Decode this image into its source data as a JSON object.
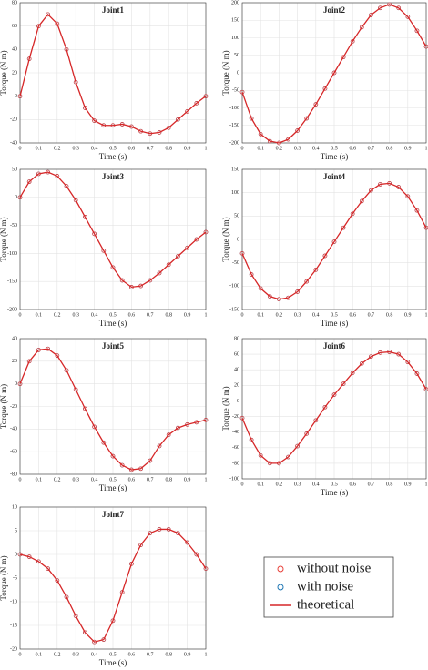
{
  "chart_data": [
    {
      "type": "line",
      "title": "Joint1",
      "xlabel": "Time (s)",
      "ylabel": "Torque (N m)",
      "grid": true,
      "x": [
        0,
        0.05,
        0.1,
        0.15,
        0.2,
        0.25,
        0.3,
        0.35,
        0.4,
        0.45,
        0.5,
        0.55,
        0.6,
        0.65,
        0.7,
        0.75,
        0.8,
        0.85,
        0.9,
        0.95,
        1
      ],
      "xlim": [
        0,
        1
      ],
      "xticks": [
        0,
        0.1,
        0.2,
        0.3,
        0.4,
        0.5,
        0.6,
        0.7,
        0.8,
        0.9,
        1
      ],
      "ylim": [
        -40,
        80
      ],
      "yticks": [
        -40,
        -20,
        0,
        20,
        40,
        60,
        80
      ],
      "series": [
        {
          "name": "with noise",
          "color": "#1f77b4",
          "mode": "markers",
          "values": [
            0,
            32,
            60,
            70,
            62,
            40,
            12,
            -10,
            -21,
            -25,
            -25,
            -24,
            -26,
            -30,
            -32,
            -31,
            -27,
            -20,
            -13,
            -6,
            0
          ]
        },
        {
          "name": "without noise",
          "color": "#e8413a",
          "mode": "markers",
          "values": [
            0,
            32,
            60,
            70,
            62,
            40,
            12,
            -10,
            -21,
            -25,
            -25,
            -24,
            -26,
            -30,
            -32,
            -31,
            -27,
            -20,
            -13,
            -6,
            0
          ]
        },
        {
          "name": "theoretical",
          "color": "#d62728",
          "mode": "line",
          "values": [
            0,
            32,
            60,
            70,
            62,
            40,
            12,
            -10,
            -21,
            -25,
            -25,
            -24,
            -26,
            -30,
            -32,
            -31,
            -27,
            -20,
            -13,
            -6,
            0
          ]
        }
      ]
    },
    {
      "type": "line",
      "title": "Joint2",
      "xlabel": "Time (s)",
      "ylabel": "Torque (N m)",
      "grid": true,
      "x": [
        0,
        0.05,
        0.1,
        0.15,
        0.2,
        0.25,
        0.3,
        0.35,
        0.4,
        0.45,
        0.5,
        0.55,
        0.6,
        0.65,
        0.7,
        0.75,
        0.8,
        0.85,
        0.9,
        0.95,
        1
      ],
      "xlim": [
        0,
        1
      ],
      "xticks": [
        0,
        0.1,
        0.2,
        0.3,
        0.4,
        0.5,
        0.6,
        0.7,
        0.8,
        0.9,
        1
      ],
      "ylim": [
        -200,
        200
      ],
      "yticks": [
        -200,
        -150,
        -100,
        -50,
        0,
        50,
        100,
        150,
        200
      ],
      "series": [
        {
          "name": "with noise",
          "color": "#1f77b4",
          "mode": "markers",
          "values": [
            -55,
            -130,
            -175,
            -195,
            -200,
            -190,
            -165,
            -130,
            -90,
            -45,
            0,
            45,
            90,
            130,
            165,
            185,
            195,
            185,
            160,
            120,
            75
          ]
        },
        {
          "name": "without noise",
          "color": "#e8413a",
          "mode": "markers",
          "values": [
            -55,
            -130,
            -175,
            -195,
            -200,
            -190,
            -165,
            -130,
            -90,
            -45,
            0,
            45,
            90,
            130,
            165,
            185,
            195,
            185,
            160,
            120,
            75
          ]
        },
        {
          "name": "theoretical",
          "color": "#d62728",
          "mode": "line",
          "values": [
            -55,
            -130,
            -175,
            -195,
            -200,
            -190,
            -165,
            -130,
            -90,
            -45,
            0,
            45,
            90,
            130,
            165,
            185,
            195,
            185,
            160,
            120,
            75
          ]
        }
      ]
    },
    {
      "type": "line",
      "title": "Joint3",
      "xlabel": "Time (s)",
      "ylabel": "Torque (N m)",
      "grid": true,
      "x": [
        0,
        0.05,
        0.1,
        0.15,
        0.2,
        0.25,
        0.3,
        0.35,
        0.4,
        0.45,
        0.5,
        0.55,
        0.6,
        0.65,
        0.7,
        0.75,
        0.8,
        0.85,
        0.9,
        0.95,
        1
      ],
      "xlim": [
        0,
        1
      ],
      "xticks": [
        0,
        0.1,
        0.2,
        0.3,
        0.4,
        0.5,
        0.6,
        0.7,
        0.8,
        0.9,
        1
      ],
      "ylim": [
        -200,
        50
      ],
      "yticks": [
        -200,
        -150,
        -100,
        -50,
        0,
        50
      ],
      "series": [
        {
          "name": "with noise",
          "color": "#1f77b4",
          "mode": "markers",
          "values": [
            0,
            28,
            42,
            45,
            38,
            20,
            -5,
            -35,
            -65,
            -95,
            -125,
            -148,
            -160,
            -158,
            -148,
            -135,
            -120,
            -105,
            -90,
            -75,
            -62
          ]
        },
        {
          "name": "without noise",
          "color": "#e8413a",
          "mode": "markers",
          "values": [
            0,
            28,
            42,
            45,
            38,
            20,
            -5,
            -35,
            -65,
            -95,
            -125,
            -148,
            -160,
            -158,
            -148,
            -135,
            -120,
            -105,
            -90,
            -75,
            -62
          ]
        },
        {
          "name": "theoretical",
          "color": "#d62728",
          "mode": "line",
          "values": [
            0,
            28,
            42,
            45,
            38,
            20,
            -5,
            -35,
            -65,
            -95,
            -125,
            -148,
            -160,
            -158,
            -148,
            -135,
            -120,
            -105,
            -90,
            -75,
            -62
          ]
        }
      ]
    },
    {
      "type": "line",
      "title": "Joint4",
      "xlabel": "Time (s)",
      "ylabel": "Torque (N m)",
      "grid": true,
      "x": [
        0,
        0.05,
        0.1,
        0.15,
        0.2,
        0.25,
        0.3,
        0.35,
        0.4,
        0.45,
        0.5,
        0.55,
        0.6,
        0.65,
        0.7,
        0.75,
        0.8,
        0.85,
        0.9,
        0.95,
        1
      ],
      "xlim": [
        0,
        1
      ],
      "xticks": [
        0,
        0.1,
        0.2,
        0.3,
        0.4,
        0.5,
        0.6,
        0.7,
        0.8,
        0.9,
        1
      ],
      "ylim": [
        -150,
        150
      ],
      "yticks": [
        -150,
        -100,
        -50,
        0,
        50,
        100,
        150
      ],
      "series": [
        {
          "name": "with noise",
          "color": "#1f77b4",
          "mode": "markers",
          "values": [
            -30,
            -75,
            -105,
            -122,
            -128,
            -125,
            -112,
            -90,
            -65,
            -35,
            -5,
            25,
            55,
            82,
            105,
            118,
            120,
            112,
            92,
            62,
            25
          ]
        },
        {
          "name": "without noise",
          "color": "#e8413a",
          "mode": "markers",
          "values": [
            -30,
            -75,
            -105,
            -122,
            -128,
            -125,
            -112,
            -90,
            -65,
            -35,
            -5,
            25,
            55,
            82,
            105,
            118,
            120,
            112,
            92,
            62,
            25
          ]
        },
        {
          "name": "theoretical",
          "color": "#d62728",
          "mode": "line",
          "values": [
            -30,
            -75,
            -105,
            -122,
            -128,
            -125,
            -112,
            -90,
            -65,
            -35,
            -5,
            25,
            55,
            82,
            105,
            118,
            120,
            112,
            92,
            62,
            25
          ]
        }
      ]
    },
    {
      "type": "line",
      "title": "Joint5",
      "xlabel": "Time (s)",
      "ylabel": "Torque (N m)",
      "grid": true,
      "x": [
        0,
        0.05,
        0.1,
        0.15,
        0.2,
        0.25,
        0.3,
        0.35,
        0.4,
        0.45,
        0.5,
        0.55,
        0.6,
        0.65,
        0.7,
        0.75,
        0.8,
        0.85,
        0.9,
        0.95,
        1
      ],
      "xlim": [
        0,
        1
      ],
      "xticks": [
        0,
        0.1,
        0.2,
        0.3,
        0.4,
        0.5,
        0.6,
        0.7,
        0.8,
        0.9,
        1
      ],
      "ylim": [
        -80,
        40
      ],
      "yticks": [
        -80,
        -60,
        -40,
        -20,
        0,
        20,
        40
      ],
      "series": [
        {
          "name": "with noise",
          "color": "#1f77b4",
          "mode": "markers",
          "values": [
            0,
            20,
            30,
            31,
            25,
            12,
            -5,
            -22,
            -38,
            -52,
            -64,
            -72,
            -76,
            -75,
            -68,
            -55,
            -45,
            -39,
            -36,
            -34,
            -32
          ]
        },
        {
          "name": "without noise",
          "color": "#e8413a",
          "mode": "markers",
          "values": [
            0,
            20,
            30,
            31,
            25,
            12,
            -5,
            -22,
            -38,
            -52,
            -64,
            -72,
            -76,
            -75,
            -68,
            -55,
            -45,
            -39,
            -36,
            -34,
            -32
          ]
        },
        {
          "name": "theoretical",
          "color": "#d62728",
          "mode": "line",
          "values": [
            0,
            20,
            30,
            31,
            25,
            12,
            -5,
            -22,
            -38,
            -52,
            -64,
            -72,
            -76,
            -75,
            -68,
            -55,
            -45,
            -39,
            -36,
            -34,
            -32
          ]
        }
      ]
    },
    {
      "type": "line",
      "title": "Joint6",
      "xlabel": "Time (s)",
      "ylabel": "Torque (N m)",
      "grid": true,
      "x": [
        0,
        0.05,
        0.1,
        0.15,
        0.2,
        0.25,
        0.3,
        0.35,
        0.4,
        0.45,
        0.5,
        0.55,
        0.6,
        0.65,
        0.7,
        0.75,
        0.8,
        0.85,
        0.9,
        0.95,
        1
      ],
      "xlim": [
        0,
        1
      ],
      "xticks": [
        0,
        0.1,
        0.2,
        0.3,
        0.4,
        0.5,
        0.6,
        0.7,
        0.8,
        0.9,
        1
      ],
      "ylim": [
        -100,
        80
      ],
      "yticks": [
        -100,
        -80,
        -60,
        -40,
        -20,
        0,
        20,
        40,
        60,
        80
      ],
      "series": [
        {
          "name": "with noise",
          "color": "#1f77b4",
          "mode": "markers",
          "values": [
            -22,
            -50,
            -70,
            -80,
            -80,
            -72,
            -58,
            -42,
            -25,
            -8,
            8,
            22,
            36,
            48,
            57,
            62,
            63,
            60,
            50,
            35,
            15
          ]
        },
        {
          "name": "without noise",
          "color": "#e8413a",
          "mode": "markers",
          "values": [
            -22,
            -50,
            -70,
            -80,
            -80,
            -72,
            -58,
            -42,
            -25,
            -8,
            8,
            22,
            36,
            48,
            57,
            62,
            63,
            60,
            50,
            35,
            15
          ]
        },
        {
          "name": "theoretical",
          "color": "#d62728",
          "mode": "line",
          "values": [
            -22,
            -50,
            -70,
            -80,
            -80,
            -72,
            -58,
            -42,
            -25,
            -8,
            8,
            22,
            36,
            48,
            57,
            62,
            63,
            60,
            50,
            35,
            15
          ]
        }
      ]
    },
    {
      "type": "line",
      "title": "Joint7",
      "xlabel": "Time (s)",
      "ylabel": "Torque (N m)",
      "grid": true,
      "x": [
        0,
        0.05,
        0.1,
        0.15,
        0.2,
        0.25,
        0.3,
        0.35,
        0.4,
        0.45,
        0.5,
        0.55,
        0.6,
        0.65,
        0.7,
        0.75,
        0.8,
        0.85,
        0.9,
        0.95,
        1
      ],
      "xlim": [
        0,
        1
      ],
      "xticks": [
        0,
        0.1,
        0.2,
        0.3,
        0.4,
        0.5,
        0.6,
        0.7,
        0.8,
        0.9,
        1
      ],
      "ylim": [
        -20,
        10
      ],
      "yticks": [
        -20,
        -15,
        -10,
        -5,
        0,
        5,
        10
      ],
      "series": [
        {
          "name": "with noise",
          "color": "#1f77b4",
          "mode": "markers",
          "values": [
            0,
            -0.5,
            -1.5,
            -3,
            -5.5,
            -9,
            -13,
            -16.5,
            -18.5,
            -18,
            -14,
            -8,
            -2,
            2,
            4.5,
            5.3,
            5.3,
            4.5,
            2.5,
            0,
            -3
          ]
        },
        {
          "name": "without noise",
          "color": "#e8413a",
          "mode": "markers",
          "values": [
            0,
            -0.5,
            -1.5,
            -3,
            -5.5,
            -9,
            -13,
            -16.5,
            -18.5,
            -18,
            -14,
            -8,
            -2,
            2,
            4.5,
            5.3,
            5.3,
            4.5,
            2.5,
            0,
            -3
          ]
        },
        {
          "name": "theoretical",
          "color": "#d62728",
          "mode": "line",
          "values": [
            0,
            -0.5,
            -1.5,
            -3,
            -5.5,
            -9,
            -13,
            -16.5,
            -18.5,
            -18,
            -14,
            -8,
            -2,
            2,
            4.5,
            5.3,
            5.3,
            4.5,
            2.5,
            0,
            -3
          ]
        }
      ]
    }
  ]
}
